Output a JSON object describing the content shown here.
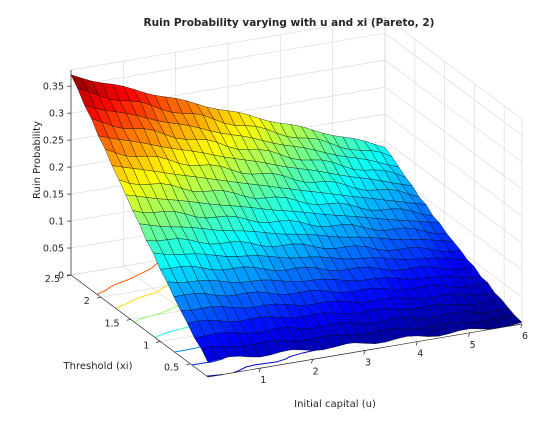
{
  "chart_data": {
    "type": "surface",
    "title": "Ruin Probability varying with u and xi (Pareto, 2)",
    "xlabel": "Initial capital (u)",
    "ylabel": "Threshold (xi)",
    "zlabel": "Ruin Probability",
    "xlim": [
      0,
      6
    ],
    "ylim": [
      0.2,
      2.5
    ],
    "zlim": [
      0,
      0.38
    ],
    "xticks": [
      "1",
      "2",
      "3",
      "4",
      "5",
      "6"
    ],
    "yticks": [
      "0.5",
      "1",
      "1.5",
      "2",
      "2.5"
    ],
    "zticks": [
      "0",
      "0.05",
      "0.1",
      "0.15",
      "0.2",
      "0.25",
      "0.3",
      "0.35"
    ],
    "colormap": "jet",
    "grid": true,
    "surface_model": {
      "x_grid": [
        0,
        6,
        31
      ],
      "y_grid": [
        0.2,
        2.5,
        21
      ],
      "values_at_corners": {
        "u0_xi2.5": 0.37,
        "u6_xi2.5": 0.14,
        "u0_xi0.2": 0.03,
        "u6_xi0.2": 0.0
      }
    },
    "contour_levels": [
      0.03,
      0.06,
      0.1,
      0.15,
      0.2,
      0.25,
      0.3
    ]
  }
}
